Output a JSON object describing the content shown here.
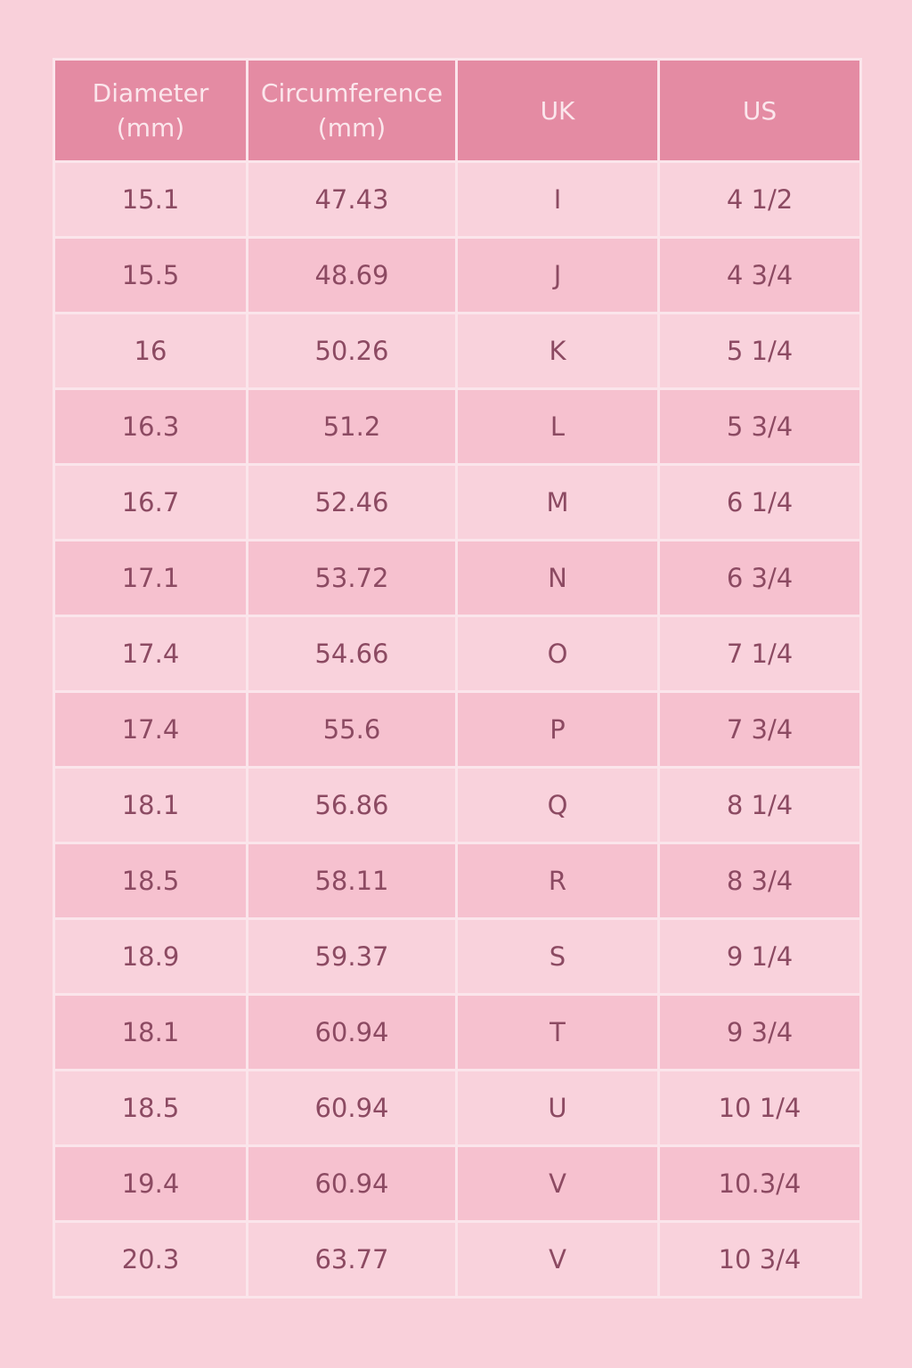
{
  "table": {
    "header": [
      "Diameter (mm)",
      "Circumference (mm)",
      "UK",
      "US"
    ],
    "rows": [
      [
        "15.1",
        "47.43",
        "I",
        "4 1/2"
      ],
      [
        "15.5",
        "48.69",
        "J",
        "4 3/4"
      ],
      [
        "16",
        "50.26",
        "K",
        "5 1/4"
      ],
      [
        "16.3",
        "51.2",
        "L",
        "5 3/4"
      ],
      [
        "16.7",
        "52.46",
        "M",
        "6 1/4"
      ],
      [
        "17.1",
        "53.72",
        "N",
        "6 3/4"
      ],
      [
        "17.4",
        "54.66",
        "O",
        "7 1/4"
      ],
      [
        "17.4",
        "55.6",
        "P",
        "7 3/4"
      ],
      [
        "18.1",
        "56.86",
        "Q",
        "8 1/4"
      ],
      [
        "18.5",
        "58.11",
        "R",
        "8 3/4"
      ],
      [
        "18.9",
        "59.37",
        "S",
        "9 1/4"
      ],
      [
        "18.1",
        "60.94",
        "T",
        "9 3/4"
      ],
      [
        "18.5",
        "60.94",
        "U",
        "10 1/4"
      ],
      [
        "19.4",
        "60.94",
        "V",
        "10.3/4"
      ],
      [
        "20.3",
        "63.77",
        "V",
        "10 3/4"
      ]
    ]
  }
}
